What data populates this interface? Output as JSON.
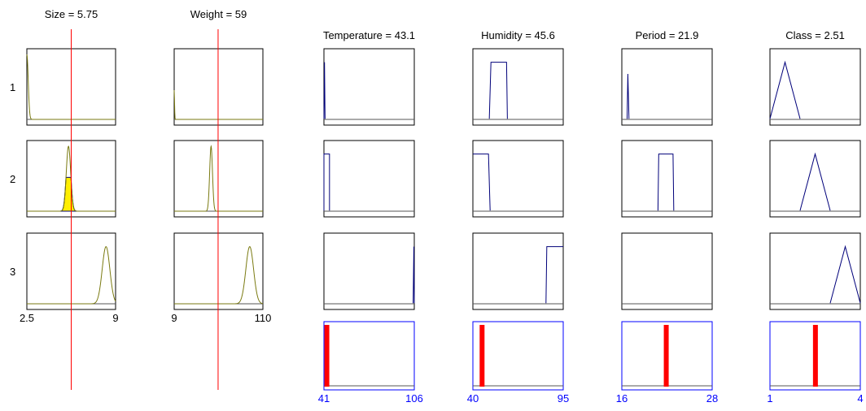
{
  "rows": [
    "1",
    "2",
    "3"
  ],
  "colors": {
    "frame": "#000000",
    "input_curve": "#7a7a10",
    "input_fill": "#ffee00",
    "output_curve": "#00007a",
    "baseline": "#555555",
    "cursor_line": "#ff0000",
    "aggregate_frame": "#0000ff",
    "aggregate_bar": "#ff0000",
    "output_tick_labels": "#0000ff"
  },
  "inputs": [
    {
      "title": "Size = 5.75",
      "value": 5.75,
      "range": [
        2.5,
        9
      ],
      "tick_min_label": "2.5",
      "tick_max_label": "9",
      "membership": [
        {
          "shape": "decay",
          "center": 2.5,
          "sigma": 0.1,
          "peak": 1.0
        },
        {
          "shape": "gaussian",
          "center": 5.55,
          "sigma": 0.16,
          "peak": 1.0,
          "fill_level": 0.52
        },
        {
          "shape": "gaussian",
          "center": 8.3,
          "sigma": 0.28,
          "peak": 0.88
        }
      ]
    },
    {
      "title": "Weight = 59",
      "value": 59,
      "range": [
        9,
        110
      ],
      "tick_min_label": "9",
      "tick_max_label": "110",
      "membership": [
        {
          "shape": "spike",
          "center": 9,
          "sigma": 0.4,
          "peak": 0.45
        },
        {
          "shape": "gaussian",
          "center": 51,
          "sigma": 1.6,
          "peak": 1.0
        },
        {
          "shape": "gaussian",
          "center": 95,
          "sigma": 4.4,
          "peak": 0.88
        }
      ]
    }
  ],
  "outputs": [
    {
      "title": "Temperature = 43.1",
      "value": 43.1,
      "range": [
        41,
        106
      ],
      "tick_min_label": "41",
      "tick_max_label": "106",
      "membership": [
        [
          [
            41,
            0.01
          ],
          [
            41.4,
            0.88
          ],
          [
            41.8,
            0.01
          ]
        ],
        [
          [
            41,
            0.01
          ],
          [
            41,
            0.88
          ],
          [
            45,
            0.88
          ],
          [
            45,
            0.01
          ]
        ],
        [
          [
            105.2,
            0.01
          ],
          [
            105.7,
            0.88
          ],
          [
            106,
            0.01
          ]
        ]
      ]
    },
    {
      "title": "Humidity = 45.6",
      "value": 45.6,
      "range": [
        40,
        95
      ],
      "tick_min_label": "40",
      "tick_max_label": "95",
      "membership": [
        [
          [
            50,
            0.01
          ],
          [
            51,
            0.88
          ],
          [
            60.5,
            0.88
          ],
          [
            61,
            0.01
          ]
        ],
        [
          [
            40,
            0.88
          ],
          [
            49.5,
            0.88
          ],
          [
            50.5,
            0.01
          ]
        ],
        [
          [
            84.5,
            0.01
          ],
          [
            85,
            0.88
          ],
          [
            95,
            0.88
          ]
        ]
      ]
    },
    {
      "title": "Period = 21.9",
      "value": 21.9,
      "range": [
        16,
        28
      ],
      "tick_min_label": "16",
      "tick_max_label": "28",
      "membership": [
        [
          [
            16.7,
            0.01
          ],
          [
            16.8,
            0.7
          ],
          [
            16.95,
            0.01
          ]
        ],
        [
          [
            20.8,
            0.01
          ],
          [
            20.9,
            0.88
          ],
          [
            22.8,
            0.88
          ],
          [
            22.9,
            0.01
          ]
        ],
        []
      ]
    },
    {
      "title": "Class = 2.51",
      "value": 2.51,
      "range": [
        1,
        4
      ],
      "tick_min_label": "1",
      "tick_max_label": "4",
      "membership": [
        [
          [
            1,
            0.01
          ],
          [
            1.5,
            0.88
          ],
          [
            2.0,
            0.01
          ]
        ],
        [
          [
            2.0,
            0.01
          ],
          [
            2.5,
            0.88
          ],
          [
            3.0,
            0.01
          ]
        ],
        [
          [
            3.0,
            0.01
          ],
          [
            3.5,
            0.88
          ],
          [
            4.0,
            0.01
          ]
        ]
      ]
    }
  ]
}
